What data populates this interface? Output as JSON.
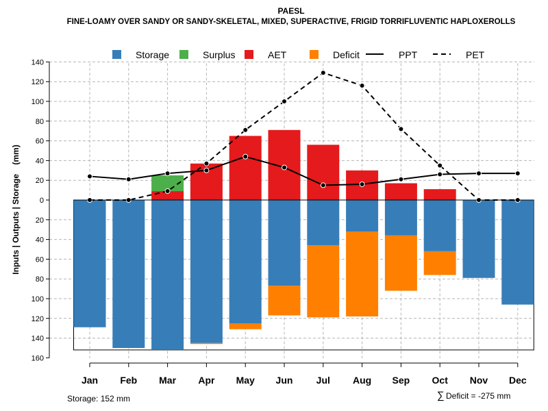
{
  "chart_data": {
    "type": "bar",
    "title": "PAESL",
    "subtitle": "FINE-LOAMY OVER SANDY OR SANDY-SKELETAL, MIXED, SUPERACTIVE, FRIGID TORRIFLUVENTIC HAPLOXEROLLS",
    "ylabel": "Inputs | Outputs | Storage    (mm)",
    "ylim": [
      -160,
      140
    ],
    "yticks": [
      140,
      120,
      100,
      80,
      60,
      40,
      20,
      0,
      -20,
      -40,
      -60,
      -80,
      -100,
      -120,
      -140,
      -160
    ],
    "ytick_labels": [
      "140",
      "120",
      "100",
      "80",
      "60",
      "40",
      "20",
      "0",
      "20",
      "40",
      "60",
      "80",
      "100",
      "120",
      "140",
      "160"
    ],
    "grid": true,
    "categories": [
      "Jan",
      "Feb",
      "Mar",
      "Apr",
      "May",
      "Jun",
      "Jul",
      "Aug",
      "Sep",
      "Oct",
      "Nov",
      "Dec"
    ],
    "legend": {
      "placement": "top",
      "items": [
        {
          "label": "Storage",
          "kind": "box",
          "color": "#377EB8"
        },
        {
          "label": "Surplus",
          "kind": "box",
          "color": "#4DAF4A"
        },
        {
          "label": "AET",
          "kind": "box",
          "color": "#E41A1C"
        },
        {
          "label": "Deficit",
          "kind": "box",
          "color": "#FF7F00"
        },
        {
          "label": "PPT",
          "kind": "solid",
          "color": "#000000"
        },
        {
          "label": "PET",
          "kind": "dashed",
          "color": "#000000"
        }
      ]
    },
    "series": [
      {
        "name": "Storage",
        "color": "#377EB8",
        "values": [
          -129,
          -150,
          -152,
          -145,
          -125,
          -87,
          -46,
          -32,
          -36,
          -52,
          -79,
          -106
        ]
      },
      {
        "name": "Deficit",
        "color": "#FF7F00",
        "values": [
          0,
          0,
          0,
          -1,
          -6,
          -30,
          -73,
          -86,
          -56,
          -24,
          0,
          0
        ]
      },
      {
        "name": "AET",
        "color": "#E41A1C",
        "values": [
          0,
          0,
          9,
          37,
          65,
          71,
          56,
          30,
          17,
          11,
          0,
          0
        ]
      },
      {
        "name": "Surplus",
        "color": "#4DAF4A",
        "values": [
          0,
          0,
          16,
          0,
          0,
          0,
          0,
          0,
          0,
          0,
          0,
          0
        ]
      },
      {
        "name": "PPT",
        "color": "#000000",
        "values": [
          24,
          21,
          27,
          30,
          44,
          33,
          15,
          16,
          21,
          26,
          27,
          27
        ]
      },
      {
        "name": "PET",
        "color": "#000000",
        "values": [
          0,
          0,
          9,
          37,
          71,
          100,
          129,
          116,
          72,
          35,
          0,
          0
        ]
      }
    ],
    "annotations": {
      "storage_note": "Storage: 152 mm",
      "deficit_symbol": "∑",
      "deficit_note": "Deficit = -275 mm"
    }
  }
}
